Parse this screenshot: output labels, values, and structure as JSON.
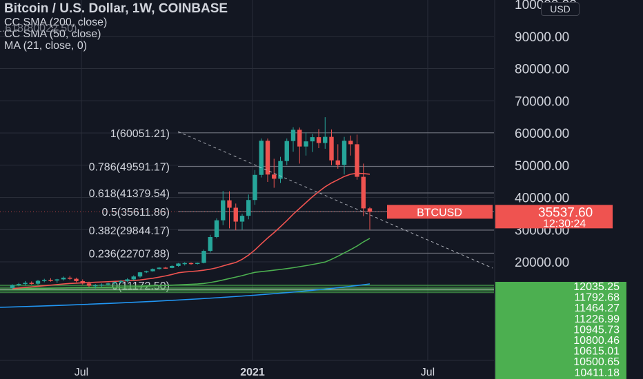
{
  "header": {
    "title": "Bitcoin / U.S. Dollar, 1W, COINBASE",
    "indicators": [
      "CC SMA (200, close)",
      "CC SMA (50, close)",
      "MA (21, close, 0)"
    ],
    "ghost_label": "1.618(80022.50)",
    "currency": "USD"
  },
  "colors": {
    "background": "#131722",
    "up": "#26a69a",
    "down": "#ef5350",
    "ma21": "#ef5350",
    "sma50": "#4caf50",
    "sma200": "#2196f3",
    "fib": "#d1d4dc",
    "zone": "#4caf50"
  },
  "chart_data": {
    "type": "candlestick",
    "title": "Bitcoin / U.S. Dollar, 1W, COINBASE",
    "series_name": "BTCUSD",
    "x_tick_labels": [
      "Jul",
      "2021",
      "Jul"
    ],
    "y_tick_labels": [
      "100000.00",
      "90000.00",
      "80000.00",
      "70000.00",
      "60000.00",
      "50000.00",
      "40000.00",
      "30000.00",
      "20000.00"
    ],
    "y_ticks": [
      100000,
      90000,
      80000,
      70000,
      60000,
      50000,
      40000,
      30000,
      20000
    ],
    "ylim": [
      12000,
      101500
    ],
    "lower_scale_labels": [
      "12035.25",
      "11792.68",
      "11464.27",
      "11226.99",
      "10945.73",
      "10800.46",
      "10615.01",
      "10500.65",
      "10411.18"
    ],
    "current_price": {
      "label": "BTCUSD",
      "price": "35537.60",
      "countdown": "12:30:24"
    },
    "fib_levels": [
      {
        "label": "1(60051.21)",
        "value": 60051.21
      },
      {
        "label": "0.786(49591.17)",
        "value": 49591.17
      },
      {
        "label": "0.618(41379.54)",
        "value": 41379.54
      },
      {
        "label": "0.5(35611.86)",
        "value": 35611.86
      },
      {
        "label": "0.382(29844.17)",
        "value": 29844.17
      },
      {
        "label": "0.236(22707.88)",
        "value": 22707.88
      },
      {
        "label": "0(11172.50)",
        "value": 11172.5
      }
    ],
    "candles": [
      [
        10300,
        10950,
        10100,
        10800
      ],
      [
        10800,
        11200,
        10600,
        11000
      ],
      [
        11000,
        11500,
        10700,
        11200
      ],
      [
        11200,
        11450,
        10900,
        11050
      ],
      [
        11050,
        11700,
        10900,
        11550
      ],
      [
        11550,
        11900,
        11300,
        11700
      ],
      [
        11700,
        12000,
        11400,
        11600
      ],
      [
        11600,
        11900,
        11200,
        11800
      ],
      [
        11800,
        12300,
        11600,
        12100
      ],
      [
        12100,
        12400,
        11700,
        11900
      ],
      [
        11900,
        12100,
        11300,
        11500
      ],
      [
        11500,
        11800,
        10900,
        11100
      ],
      [
        11100,
        11400,
        10500,
        10700
      ],
      [
        10700,
        11000,
        10200,
        10800
      ],
      [
        10800,
        11100,
        10500,
        10900
      ],
      [
        10900,
        11200,
        10700,
        11100
      ],
      [
        11100,
        11400,
        10900,
        11300
      ],
      [
        11300,
        11700,
        11100,
        11500
      ],
      [
        11500,
        12000,
        11300,
        11800
      ],
      [
        11800,
        12500,
        11600,
        12300
      ],
      [
        12300,
        13300,
        12100,
        13100
      ],
      [
        13100,
        14200,
        12900,
        13800
      ],
      [
        13800,
        15600,
        13600,
        15300
      ],
      [
        15300,
        16500,
        14900,
        16200
      ],
      [
        16200,
        16700,
        15500,
        16000
      ],
      [
        16000,
        17700,
        15800,
        17300
      ],
      [
        17300,
        19200,
        16800,
        18900
      ],
      [
        18900,
        19800,
        17600,
        19200
      ],
      [
        19200,
        19600,
        18100,
        18700
      ],
      [
        18700,
        19500,
        18300,
        19300
      ],
      [
        19300,
        23800,
        19000,
        23400
      ],
      [
        23400,
        28400,
        22900,
        27700
      ],
      [
        27700,
        33500,
        27300,
        32900
      ],
      [
        32900,
        42000,
        31400,
        39100
      ],
      [
        39100,
        41900,
        30400,
        36800
      ],
      [
        36800,
        38100,
        29800,
        32500
      ],
      [
        32500,
        34900,
        30000,
        34300
      ],
      [
        34300,
        40900,
        33200,
        39200
      ],
      [
        39200,
        48500,
        37700,
        47000
      ],
      [
        47000,
        58300,
        46200,
        57600
      ],
      [
        57600,
        58300,
        44800,
        47100
      ],
      [
        47100,
        52000,
        43000,
        45800
      ],
      [
        45800,
        52600,
        44500,
        51300
      ],
      [
        51300,
        58300,
        50000,
        57500
      ],
      [
        57500,
        61800,
        54200,
        61000
      ],
      [
        61000,
        61700,
        50500,
        55800
      ],
      [
        55800,
        60200,
        53000,
        57400
      ],
      [
        57400,
        59700,
        54100,
        58700
      ],
      [
        58700,
        61200,
        55300,
        56900
      ],
      [
        56900,
        64900,
        55100,
        58800
      ],
      [
        58800,
        61100,
        50000,
        51500
      ],
      [
        51500,
        56500,
        48900,
        50100
      ],
      [
        50100,
        58800,
        47100,
        57600
      ],
      [
        57600,
        59200,
        53000,
        56500
      ],
      [
        56500,
        59500,
        45500,
        46400
      ],
      [
        46400,
        50500,
        34200,
        36600
      ],
      [
        36600,
        37000,
        30000,
        35537.6
      ]
    ],
    "ma21": [
      10200,
      10300,
      10400,
      10500,
      10600,
      10700,
      10800,
      10900,
      11000,
      11100,
      11150,
      11200,
      11250,
      11300,
      11350,
      11400,
      11450,
      11500,
      11550,
      11600,
      11700,
      11850,
      12000,
      12200,
      12400,
      12650,
      12950,
      13300,
      13650,
      14000,
      14500,
      15200,
      16100,
      17300,
      18500,
      19600,
      20800,
      22100,
      23700,
      25600,
      27400,
      29100,
      30900,
      32800,
      34800,
      36600,
      38400,
      40200,
      41800,
      43300,
      44500,
      45500,
      46500,
      47200,
      47500,
      47400,
      47200
    ],
    "sma50": [
      10150,
      10170,
      10190,
      10210,
      10230,
      10250,
      10270,
      10290,
      10310,
      10330,
      10350,
      10370,
      10390,
      10410,
      10430,
      10450,
      10470,
      10490,
      10510,
      10530,
      10560,
      10600,
      10650,
      10700,
      10750,
      10800,
      10850,
      10900,
      10950,
      11000,
      11100,
      11250,
      11450,
      11700,
      11950,
      12200,
      12450,
      12750,
      13100,
      13550,
      14000,
      14500,
      15000,
      15550,
      16150,
      16800,
      17500,
      18250,
      19050,
      19900,
      20800,
      21750,
      22750,
      23800,
      24900,
      26200,
      27300
    ],
    "sma200_start": 7600,
    "sma200_end": 12400
  }
}
